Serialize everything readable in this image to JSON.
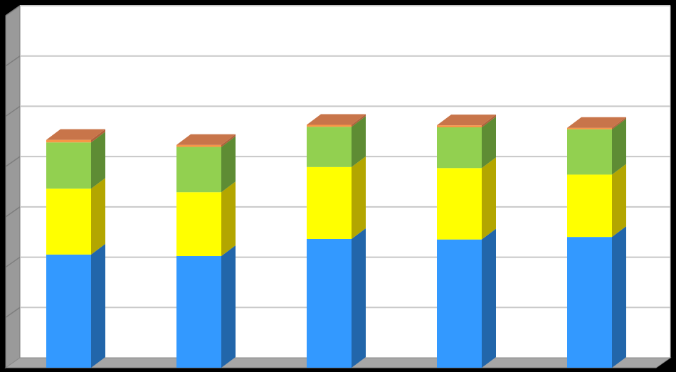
{
  "chart_data": {
    "type": "bar",
    "stacked": true,
    "three_d": true,
    "grid": true,
    "categories": [
      "",
      "",
      "",
      "",
      ""
    ],
    "series": [
      {
        "color": "#3399ff",
        "side_color": "#2266aa",
        "values": [
          2.25,
          2.22,
          2.56,
          2.55,
          2.6
        ]
      },
      {
        "color": "#ffff00",
        "side_color": "#b3a600",
        "values": [
          1.31,
          1.27,
          1.43,
          1.42,
          1.24
        ]
      },
      {
        "color": "#92d050",
        "side_color": "#5e8c34",
        "values": [
          0.92,
          0.9,
          0.8,
          0.81,
          0.9
        ]
      },
      {
        "color": "#f79646",
        "side_color": "#b0603a",
        "values": [
          0.05,
          0.04,
          0.04,
          0.04,
          0.03
        ]
      }
    ],
    "ylim": [
      0,
      7
    ],
    "title": "",
    "xlabel": "",
    "ylabel": ""
  }
}
